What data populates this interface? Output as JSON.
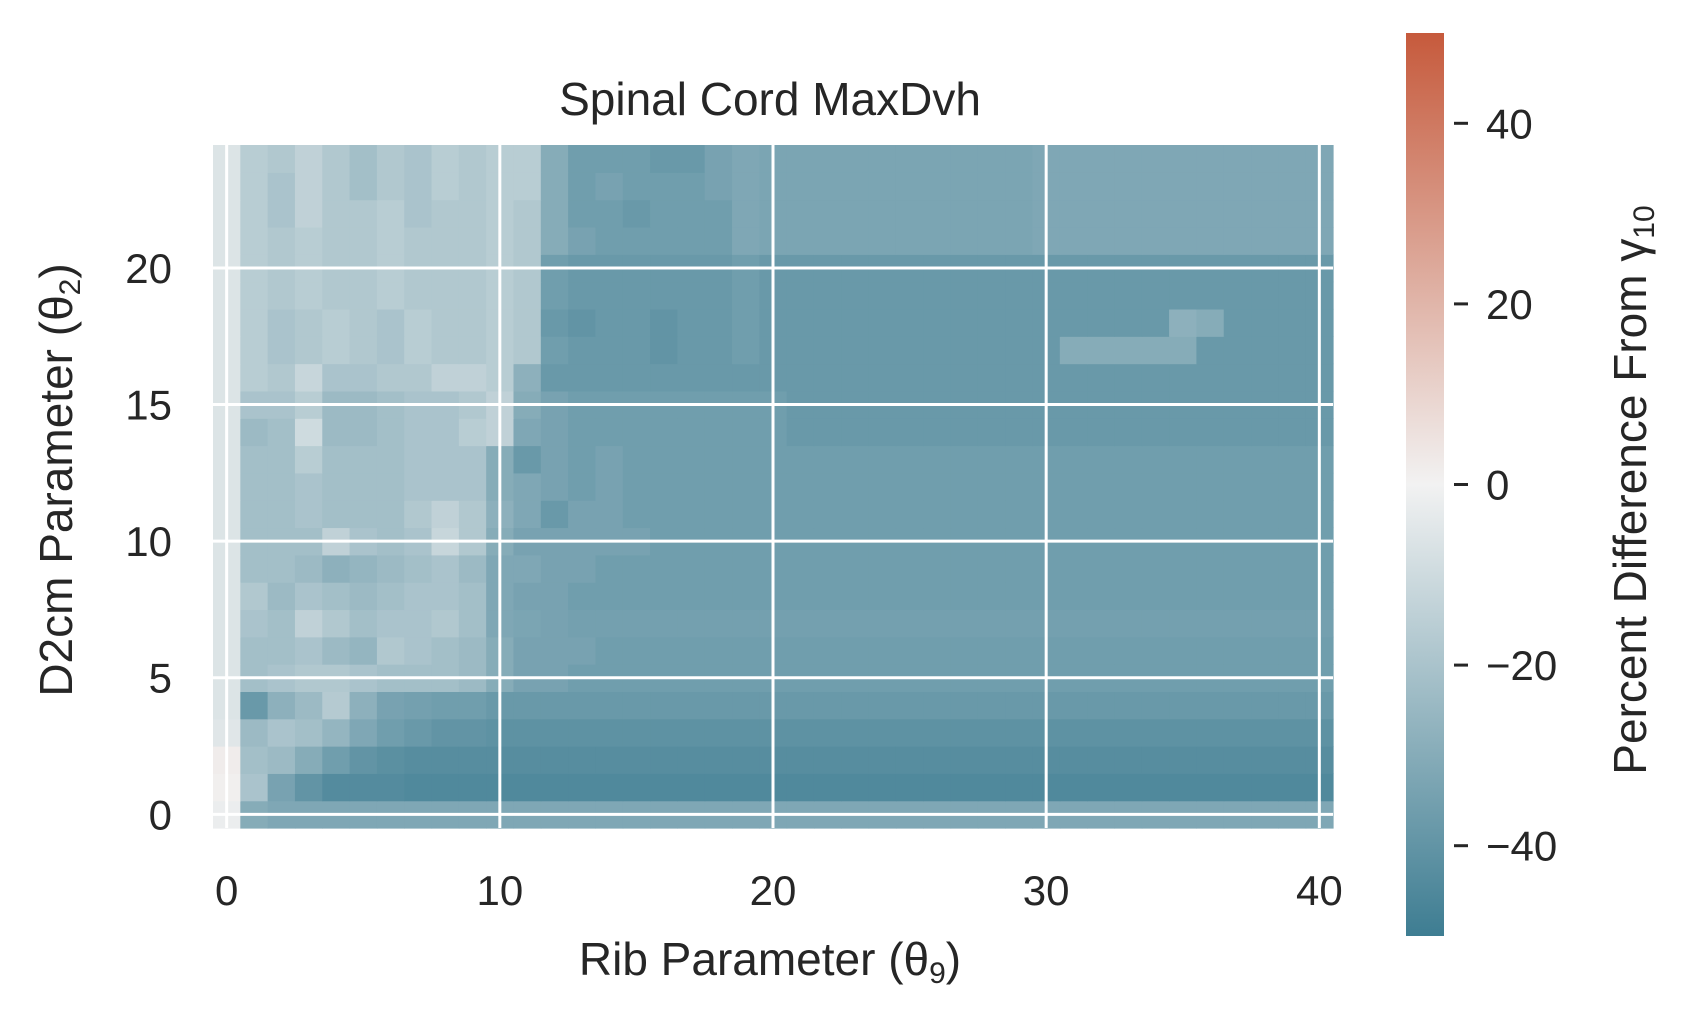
{
  "chart_data": {
    "type": "heatmap",
    "title": "Spinal Cord MaxDvh",
    "xlabel": "Rib Parameter (θ",
    "xlabel_sub": "9",
    "xlabel_close": ")",
    "ylabel": "D2cm Parameter (θ",
    "ylabel_sub": "2",
    "ylabel_close": ")",
    "colorbar_label": "Percent Difference From γ",
    "colorbar_label_sub": "10",
    "xlim": [
      -0.5,
      40.5
    ],
    "ylim": [
      -0.5,
      24.5
    ],
    "x_ticks": [
      0,
      10,
      20,
      30,
      40
    ],
    "x_tick_labels": [
      "0",
      "10",
      "20",
      "30",
      "40"
    ],
    "y_ticks": [
      0,
      5,
      10,
      15,
      20
    ],
    "y_tick_labels": [
      "0",
      "5",
      "10",
      "15",
      "20"
    ],
    "colorbar_range": [
      -50,
      50
    ],
    "colorbar_ticks": [
      40,
      20,
      0,
      -20,
      -40
    ],
    "colorbar_tick_labels": [
      "40",
      "20",
      "0",
      "−20",
      "−40"
    ],
    "colormap": {
      "low": "#3e7d92",
      "mid": "#f2f2f2",
      "high": "#c65a3c"
    },
    "grid": true,
    "grid_color": "#ffffff",
    "description": "Heatmap of percent difference for x = 0..40 (rib parameter) and y = 0..24 (D2cm parameter); rows listed from y = 0 to y = 24",
    "values": [
      [
        -2,
        -30,
        -32,
        -32,
        -32,
        -32,
        -32,
        -32,
        -32,
        -32,
        -32,
        -32,
        -32,
        -32,
        -32,
        -32,
        -32,
        -32,
        -32,
        -32,
        -32,
        -32,
        -32,
        -32,
        -32,
        -32,
        -32,
        -32,
        -32,
        -32,
        -32,
        -32,
        -32,
        -32,
        -32,
        -32,
        -32,
        -32,
        -32,
        -32,
        -32
      ],
      [
        1,
        -20,
        -34,
        -40,
        -44,
        -44,
        -44,
        -45,
        -45,
        -45,
        -45,
        -45,
        -45,
        -45,
        -45,
        -45,
        -45,
        -45,
        -45,
        -45,
        -45,
        -45,
        -45,
        -45,
        -45,
        -45,
        -45,
        -45,
        -45,
        -45,
        -45,
        -45,
        -45,
        -45,
        -45,
        -45,
        -45,
        -45,
        -45,
        -45,
        -45
      ],
      [
        2,
        -22,
        -24,
        -30,
        -36,
        -40,
        -42,
        -43,
        -43,
        -43,
        -43,
        -43,
        -43,
        -43,
        -43,
        -43,
        -43,
        -43,
        -43,
        -43,
        -43,
        -43,
        -43,
        -43,
        -43,
        -43,
        -43,
        -43,
        -43,
        -43,
        -43,
        -43,
        -43,
        -43,
        -43,
        -43,
        -43,
        -43,
        -43,
        -43,
        -43
      ],
      [
        -5,
        -24,
        -20,
        -22,
        -26,
        -32,
        -36,
        -38,
        -40,
        -40,
        -41,
        -41,
        -41,
        -41,
        -41,
        -41,
        -41,
        -41,
        -41,
        -41,
        -41,
        -41,
        -41,
        -41,
        -41,
        -41,
        -41,
        -41,
        -41,
        -41,
        -41,
        -41,
        -41,
        -41,
        -41,
        -41,
        -41,
        -41,
        -41,
        -41,
        -41
      ],
      [
        -6,
        -38,
        -28,
        -24,
        -17,
        -28,
        -34,
        -35,
        -36,
        -36,
        -38,
        -38,
        -38,
        -38,
        -38,
        -38,
        -38,
        -38,
        -38,
        -38,
        -38,
        -38,
        -38,
        -38,
        -38,
        -38,
        -38,
        -38,
        -38,
        -38,
        -38,
        -38,
        -38,
        -38,
        -38,
        -38,
        -38,
        -38,
        -38,
        -38,
        -38
      ],
      [
        -6,
        -22,
        -20,
        -18,
        -18,
        -20,
        -22,
        -22,
        -22,
        -24,
        -30,
        -34,
        -34,
        -36,
        -36,
        -36,
        -36,
        -36,
        -36,
        -36,
        -36,
        -36,
        -36,
        -36,
        -36,
        -36,
        -36,
        -36,
        -36,
        -36,
        -36,
        -36,
        -36,
        -36,
        -36,
        -36,
        -36,
        -36,
        -36,
        -36,
        -36
      ],
      [
        -6,
        -22,
        -22,
        -20,
        -24,
        -26,
        -18,
        -20,
        -22,
        -24,
        -30,
        -34,
        -34,
        -34,
        -36,
        -36,
        -36,
        -36,
        -36,
        -36,
        -36,
        -36,
        -36,
        -36,
        -36,
        -36,
        -36,
        -36,
        -36,
        -36,
        -36,
        -36,
        -36,
        -36,
        -36,
        -36,
        -36,
        -36,
        -36,
        -36,
        -36
      ],
      [
        -6,
        -20,
        -22,
        -14,
        -18,
        -22,
        -20,
        -20,
        -18,
        -22,
        -32,
        -33,
        -34,
        -35,
        -35,
        -35,
        -35,
        -35,
        -35,
        -35,
        -35,
        -35,
        -35,
        -35,
        -35,
        -35,
        -35,
        -35,
        -35,
        -35,
        -35,
        -35,
        -35,
        -35,
        -35,
        -35,
        -35,
        -35,
        -35,
        -35,
        -35
      ],
      [
        -6,
        -18,
        -24,
        -20,
        -22,
        -24,
        -22,
        -20,
        -20,
        -22,
        -32,
        -34,
        -34,
        -36,
        -36,
        -36,
        -36,
        -36,
        -36,
        -36,
        -36,
        -36,
        -36,
        -36,
        -36,
        -36,
        -36,
        -36,
        -36,
        -36,
        -36,
        -36,
        -36,
        -36,
        -36,
        -36,
        -36,
        -36,
        -36,
        -36,
        -36
      ],
      [
        -6,
        -22,
        -22,
        -24,
        -28,
        -26,
        -24,
        -22,
        -20,
        -24,
        -32,
        -32,
        -34,
        -34,
        -36,
        -36,
        -36,
        -36,
        -36,
        -36,
        -36,
        -36,
        -36,
        -36,
        -36,
        -36,
        -36,
        -36,
        -36,
        -36,
        -36,
        -36,
        -36,
        -36,
        -36,
        -36,
        -36,
        -36,
        -36,
        -36,
        -36
      ],
      [
        -6,
        -22,
        -22,
        -22,
        -14,
        -20,
        -22,
        -20,
        -12,
        -18,
        -30,
        -34,
        -34,
        -34,
        -34,
        -34,
        -36,
        -36,
        -36,
        -36,
        -36,
        -36,
        -36,
        -36,
        -36,
        -36,
        -36,
        -36,
        -36,
        -36,
        -36,
        -36,
        -36,
        -36,
        -36,
        -36,
        -36,
        -36,
        -36,
        -36,
        -36
      ],
      [
        -6,
        -22,
        -22,
        -20,
        -22,
        -22,
        -22,
        -18,
        -14,
        -18,
        -28,
        -32,
        -38,
        -34,
        -34,
        -36,
        -36,
        -36,
        -36,
        -36,
        -36,
        -36,
        -36,
        -36,
        -36,
        -36,
        -36,
        -36,
        -36,
        -36,
        -36,
        -36,
        -36,
        -36,
        -36,
        -36,
        -36,
        -36,
        -36,
        -36,
        -36
      ],
      [
        -6,
        -22,
        -22,
        -20,
        -22,
        -22,
        -22,
        -20,
        -20,
        -20,
        -30,
        -32,
        -34,
        -36,
        -34,
        -36,
        -36,
        -36,
        -36,
        -36,
        -36,
        -36,
        -36,
        -36,
        -36,
        -36,
        -36,
        -36,
        -36,
        -36,
        -36,
        -36,
        -36,
        -36,
        -36,
        -36,
        -36,
        -36,
        -36,
        -36,
        -36
      ],
      [
        -6,
        -22,
        -22,
        -16,
        -22,
        -22,
        -22,
        -20,
        -20,
        -20,
        -30,
        -38,
        -34,
        -36,
        -34,
        -36,
        -36,
        -36,
        -36,
        -36,
        -36,
        -36,
        -36,
        -36,
        -36,
        -36,
        -36,
        -36,
        -36,
        -36,
        -36,
        -36,
        -36,
        -36,
        -36,
        -36,
        -36,
        -36,
        -36,
        -36,
        -36
      ],
      [
        -6,
        -24,
        -22,
        -10,
        -24,
        -24,
        -22,
        -20,
        -20,
        -16,
        -14,
        -32,
        -34,
        -36,
        -36,
        -36,
        -36,
        -36,
        -36,
        -36,
        -36,
        -38,
        -38,
        -38,
        -38,
        -38,
        -38,
        -38,
        -38,
        -38,
        -38,
        -38,
        -38,
        -38,
        -38,
        -38,
        -38,
        -38,
        -38,
        -38,
        -38
      ],
      [
        -6,
        -20,
        -20,
        -16,
        -24,
        -24,
        -22,
        -20,
        -20,
        -18,
        -14,
        -30,
        -34,
        -36,
        -36,
        -36,
        -36,
        -36,
        -36,
        -36,
        -36,
        -38,
        -38,
        -38,
        -38,
        -38,
        -38,
        -38,
        -38,
        -38,
        -38,
        -38,
        -38,
        -38,
        -38,
        -38,
        -38,
        -38,
        -38,
        -38,
        -38
      ],
      [
        -6,
        -16,
        -18,
        -12,
        -20,
        -20,
        -18,
        -18,
        -14,
        -14,
        -16,
        -28,
        -38,
        -38,
        -38,
        -38,
        -38,
        -38,
        -38,
        -38,
        -38,
        -38,
        -38,
        -38,
        -38,
        -38,
        -38,
        -38,
        -38,
        -38,
        -38,
        -38,
        -38,
        -38,
        -38,
        -38,
        -38,
        -38,
        -38,
        -38,
        -38
      ],
      [
        -6,
        -16,
        -20,
        -18,
        -16,
        -18,
        -20,
        -16,
        -18,
        -18,
        -16,
        -18,
        -36,
        -38,
        -38,
        -38,
        -40,
        -38,
        -38,
        -36,
        -38,
        -38,
        -38,
        -38,
        -38,
        -38,
        -38,
        -38,
        -38,
        -38,
        -38,
        -30,
        -30,
        -30,
        -30,
        -30,
        -38,
        -38,
        -38,
        -38,
        -38
      ],
      [
        -6,
        -16,
        -20,
        -18,
        -16,
        -18,
        -20,
        -16,
        -18,
        -18,
        -16,
        -18,
        -38,
        -40,
        -38,
        -38,
        -40,
        -38,
        -38,
        -36,
        -38,
        -38,
        -38,
        -38,
        -38,
        -38,
        -38,
        -38,
        -38,
        -38,
        -38,
        -38,
        -38,
        -38,
        -38,
        -28,
        -30,
        -38,
        -38,
        -38,
        -38
      ],
      [
        -6,
        -16,
        -18,
        -16,
        -18,
        -18,
        -16,
        -18,
        -18,
        -18,
        -16,
        -18,
        -36,
        -38,
        -38,
        -38,
        -38,
        -38,
        -38,
        -36,
        -38,
        -38,
        -38,
        -38,
        -38,
        -38,
        -38,
        -38,
        -38,
        -38,
        -38,
        -38,
        -38,
        -38,
        -38,
        -38,
        -38,
        -38,
        -38,
        -38,
        -38
      ],
      [
        -6,
        -16,
        -18,
        -16,
        -18,
        -18,
        -16,
        -18,
        -18,
        -18,
        -16,
        -18,
        -36,
        -38,
        -38,
        -38,
        -38,
        -38,
        -38,
        -36,
        -38,
        -38,
        -38,
        -38,
        -38,
        -38,
        -38,
        -38,
        -38,
        -38,
        -38,
        -38,
        -38,
        -38,
        -38,
        -38,
        -38,
        -38,
        -38,
        -38,
        -38
      ],
      [
        -6,
        -16,
        -18,
        -16,
        -18,
        -18,
        -16,
        -18,
        -18,
        -18,
        -16,
        -18,
        -30,
        -34,
        -36,
        -36,
        -36,
        -36,
        -36,
        -32,
        -33,
        -33,
        -33,
        -33,
        -33,
        -33,
        -33,
        -33,
        -33,
        -33,
        -32,
        -32,
        -32,
        -32,
        -32,
        -32,
        -32,
        -32,
        -32,
        -32,
        -32
      ],
      [
        -6,
        -16,
        -20,
        -14,
        -18,
        -18,
        -16,
        -20,
        -18,
        -18,
        -16,
        -18,
        -30,
        -36,
        -36,
        -38,
        -36,
        -36,
        -36,
        -32,
        -33,
        -33,
        -33,
        -33,
        -33,
        -33,
        -33,
        -33,
        -33,
        -33,
        -32,
        -32,
        -32,
        -32,
        -32,
        -32,
        -32,
        -32,
        -32,
        -32,
        -32
      ],
      [
        -6,
        -16,
        -20,
        -14,
        -18,
        -22,
        -18,
        -20,
        -16,
        -18,
        -16,
        -16,
        -30,
        -36,
        -34,
        -36,
        -36,
        -36,
        -34,
        -32,
        -33,
        -33,
        -33,
        -33,
        -33,
        -33,
        -33,
        -33,
        -33,
        -33,
        -32,
        -32,
        -32,
        -32,
        -32,
        -32,
        -32,
        -32,
        -32,
        -32,
        -32
      ],
      [
        -6,
        -16,
        -18,
        -14,
        -18,
        -22,
        -18,
        -20,
        -16,
        -18,
        -16,
        -16,
        -30,
        -36,
        -36,
        -36,
        -38,
        -38,
        -34,
        -32,
        -33,
        -33,
        -33,
        -33,
        -33,
        -33,
        -33,
        -33,
        -33,
        -33,
        -32,
        -32,
        -32,
        -32,
        -32,
        -32,
        -32,
        -32,
        -32,
        -32,
        -32
      ]
    ]
  }
}
